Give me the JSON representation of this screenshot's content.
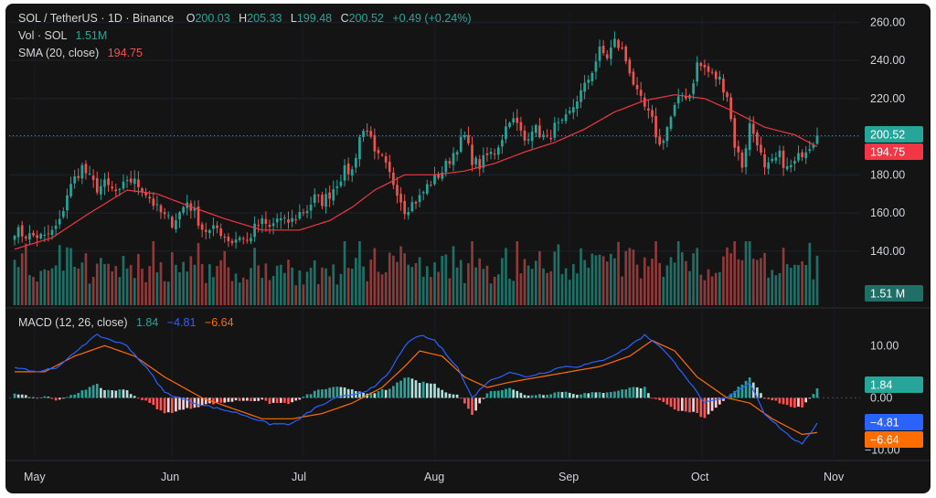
{
  "header": {
    "symbol": "SOL / TetherUS · 1D · Binance",
    "o_label": "O",
    "o_value": "200.03",
    "h_label": "H",
    "h_value": "205.33",
    "l_label": "L",
    "l_value": "199.48",
    "c_label": "C",
    "c_value": "200.52",
    "change": "+0.49 (+0.24%)"
  },
  "volume_legend": {
    "label": "Vol · SOL",
    "value": "1.51M"
  },
  "sma_legend": {
    "label": "SMA (20, close)",
    "value": "194.75"
  },
  "macd_legend": {
    "label": "MACD (12, 26, close)",
    "histogram": "1.84",
    "macd": "−4.81",
    "signal": "−6.64"
  },
  "tags": {
    "last_price": "200.52",
    "sma": "194.75",
    "volume": "1.51 M",
    "histogram": "1.84",
    "macd": "−4.81",
    "signal": "−6.64"
  },
  "colors": {
    "up": "#26a69a",
    "down": "#ef5350",
    "up_volume": "#1f6f66",
    "down_volume": "#8c3a3a",
    "sma": "#f23645",
    "macd": "#2962ff",
    "signal": "#ff6d00",
    "hist_up_strong": "#26a69a",
    "hist_up_weak": "#b2dfdb",
    "hist_down_strong": "#ff5252",
    "hist_down_weak": "#ffcdd2",
    "background": "#141414"
  },
  "chart_data": {
    "type": "candlestick",
    "x_labels": [
      "May",
      "Jun",
      "Jul",
      "Aug",
      "Sep",
      "Oct",
      "Nov"
    ],
    "price_axis": {
      "ticks": [
        "260.00",
        "240.00",
        "220.00",
        "200.00",
        "180.00",
        "160.00",
        "140.00"
      ],
      "range": [
        126,
        265
      ]
    },
    "macd_axis": {
      "ticks": [
        "10.00",
        "0.00",
        "−10.00"
      ],
      "range": [
        -12,
        16
      ]
    },
    "legend_placement": "top-left",
    "price_anchors": [
      [
        0,
        151
      ],
      [
        2,
        149
      ],
      [
        4,
        148
      ],
      [
        6,
        148
      ],
      [
        8,
        147
      ],
      [
        10,
        150
      ],
      [
        12,
        155
      ],
      [
        14,
        170
      ],
      [
        16,
        178
      ],
      [
        18,
        184
      ],
      [
        20,
        178
      ],
      [
        22,
        173
      ],
      [
        24,
        175
      ],
      [
        26,
        172
      ],
      [
        28,
        170
      ],
      [
        30,
        178
      ],
      [
        32,
        176
      ],
      [
        34,
        173
      ],
      [
        36,
        168
      ],
      [
        38,
        162
      ],
      [
        40,
        158
      ],
      [
        42,
        155
      ],
      [
        44,
        160
      ],
      [
        46,
        166
      ],
      [
        48,
        160
      ],
      [
        50,
        152
      ],
      [
        52,
        150
      ],
      [
        54,
        152
      ],
      [
        56,
        148
      ],
      [
        58,
        145
      ],
      [
        60,
        148
      ],
      [
        62,
        145
      ],
      [
        64,
        152
      ],
      [
        66,
        155
      ],
      [
        68,
        152
      ],
      [
        70,
        157
      ],
      [
        72,
        155
      ],
      [
        74,
        156
      ],
      [
        76,
        160
      ],
      [
        78,
        162
      ],
      [
        80,
        168
      ],
      [
        82,
        166
      ],
      [
        84,
        170
      ],
      [
        86,
        176
      ],
      [
        88,
        182
      ],
      [
        90,
        182
      ],
      [
        92,
        200
      ],
      [
        94,
        205
      ],
      [
        96,
        190
      ],
      [
        98,
        188
      ],
      [
        100,
        180
      ],
      [
        102,
        172
      ],
      [
        104,
        162
      ],
      [
        106,
        165
      ],
      [
        108,
        168
      ],
      [
        110,
        174
      ],
      [
        112,
        178
      ],
      [
        114,
        182
      ],
      [
        116,
        188
      ],
      [
        118,
        195
      ],
      [
        120,
        200
      ],
      [
        122,
        188
      ],
      [
        124,
        185
      ],
      [
        126,
        190
      ],
      [
        128,
        192
      ],
      [
        130,
        200
      ],
      [
        132,
        210
      ],
      [
        134,
        206
      ],
      [
        136,
        198
      ],
      [
        138,
        205
      ],
      [
        140,
        202
      ],
      [
        142,
        198
      ],
      [
        144,
        205
      ],
      [
        146,
        206
      ],
      [
        148,
        212
      ],
      [
        150,
        220
      ],
      [
        152,
        226
      ],
      [
        154,
        235
      ],
      [
        156,
        245
      ],
      [
        158,
        242
      ],
      [
        160,
        250
      ],
      [
        162,
        245
      ],
      [
        164,
        235
      ],
      [
        166,
        222
      ],
      [
        168,
        215
      ],
      [
        170,
        208
      ],
      [
        172,
        195
      ],
      [
        174,
        205
      ],
      [
        176,
        215
      ],
      [
        178,
        222
      ],
      [
        180,
        222
      ],
      [
        182,
        238
      ],
      [
        184,
        236
      ],
      [
        186,
        232
      ],
      [
        188,
        230
      ],
      [
        190,
        222
      ],
      [
        192,
        196
      ],
      [
        194,
        185
      ],
      [
        196,
        206
      ],
      [
        198,
        198
      ],
      [
        200,
        182
      ],
      [
        202,
        186
      ],
      [
        204,
        190
      ],
      [
        206,
        183
      ],
      [
        208,
        186
      ],
      [
        210,
        192
      ],
      [
        212,
        196
      ],
      [
        214,
        200.52
      ]
    ],
    "sma_anchors": [
      [
        0,
        141
      ],
      [
        10,
        147
      ],
      [
        20,
        160
      ],
      [
        30,
        172
      ],
      [
        38,
        170
      ],
      [
        46,
        164
      ],
      [
        56,
        157
      ],
      [
        66,
        151
      ],
      [
        76,
        151
      ],
      [
        84,
        156
      ],
      [
        90,
        163
      ],
      [
        96,
        172
      ],
      [
        104,
        180
      ],
      [
        112,
        180
      ],
      [
        120,
        182
      ],
      [
        128,
        186
      ],
      [
        136,
        192
      ],
      [
        144,
        197
      ],
      [
        152,
        204
      ],
      [
        160,
        213
      ],
      [
        168,
        219
      ],
      [
        176,
        222
      ],
      [
        184,
        220
      ],
      [
        192,
        213
      ],
      [
        200,
        205
      ],
      [
        208,
        201
      ],
      [
        214,
        194.75
      ]
    ],
    "macd_anchors": [
      [
        0,
        6
      ],
      [
        6,
        5
      ],
      [
        12,
        6
      ],
      [
        18,
        10
      ],
      [
        22,
        12
      ],
      [
        30,
        10
      ],
      [
        36,
        5
      ],
      [
        40,
        1
      ],
      [
        48,
        -1
      ],
      [
        54,
        -2
      ],
      [
        60,
        -3
      ],
      [
        68,
        -5
      ],
      [
        74,
        -5
      ],
      [
        80,
        -2
      ],
      [
        86,
        0
      ],
      [
        92,
        1
      ],
      [
        96,
        2
      ],
      [
        100,
        5
      ],
      [
        104,
        10
      ],
      [
        108,
        12
      ],
      [
        112,
        11
      ],
      [
        118,
        6
      ],
      [
        122,
        0
      ],
      [
        126,
        3
      ],
      [
        132,
        5
      ],
      [
        136,
        4
      ],
      [
        142,
        5
      ],
      [
        146,
        6
      ],
      [
        150,
        6
      ],
      [
        156,
        7
      ],
      [
        162,
        9
      ],
      [
        168,
        12
      ],
      [
        172,
        10
      ],
      [
        178,
        5
      ],
      [
        184,
        -1
      ],
      [
        190,
        0
      ],
      [
        196,
        3
      ],
      [
        200,
        -3
      ],
      [
        206,
        -7
      ],
      [
        210,
        -9
      ],
      [
        214,
        -4.81
      ]
    ],
    "signal_anchors": [
      [
        0,
        5
      ],
      [
        8,
        5
      ],
      [
        16,
        8
      ],
      [
        24,
        10
      ],
      [
        32,
        8
      ],
      [
        40,
        4
      ],
      [
        50,
        0
      ],
      [
        58,
        -2
      ],
      [
        66,
        -4
      ],
      [
        74,
        -4
      ],
      [
        82,
        -3
      ],
      [
        90,
        -1
      ],
      [
        98,
        2
      ],
      [
        104,
        6
      ],
      [
        108,
        9
      ],
      [
        114,
        8
      ],
      [
        120,
        4
      ],
      [
        126,
        2
      ],
      [
        132,
        3
      ],
      [
        140,
        4
      ],
      [
        148,
        5
      ],
      [
        156,
        6
      ],
      [
        164,
        8
      ],
      [
        170,
        11
      ],
      [
        176,
        9
      ],
      [
        182,
        4
      ],
      [
        190,
        0
      ],
      [
        196,
        -1
      ],
      [
        202,
        -4
      ],
      [
        210,
        -7
      ],
      [
        214,
        -6.64
      ]
    ]
  }
}
